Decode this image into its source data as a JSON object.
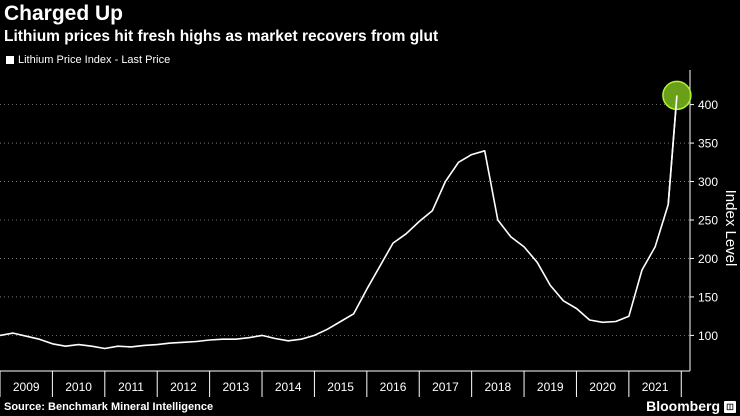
{
  "header": {
    "title": "Charged Up",
    "subtitle": "Lithium prices hit fresh highs as market recovers from glut"
  },
  "footer": {
    "source": "Source: Benchmark Mineral Intelligence",
    "brand": "Bloomberg",
    "brand_badge_icon": "bloomberg-badge-icon"
  },
  "colors": {
    "background": "#000000",
    "line": "#ffffff",
    "highlight_fill": "#7dbb1c",
    "highlight_stroke": "#b6f03a",
    "axis": "#ffffff",
    "grid": "#8a8a8a"
  },
  "chart_data": {
    "type": "line",
    "title": "Charged Up",
    "subtitle": "Lithium prices hit fresh highs as market recovers from glut",
    "ylabel": "Index Level",
    "xlabel": "",
    "legend": [
      "Lithium Price Index - Last Price"
    ],
    "legend_position": "top-left",
    "y_axis_side": "right",
    "grid": "dotted-horizontal",
    "ylim": [
      55,
      445
    ],
    "xlim": [
      "2009-01",
      "2022-03"
    ],
    "yticks": [
      100,
      150,
      200,
      250,
      300,
      350,
      400
    ],
    "xticks": [
      "2009",
      "2010",
      "2011",
      "2012",
      "2013",
      "2014",
      "2015",
      "2016",
      "2017",
      "2018",
      "2019",
      "2020",
      "2021"
    ],
    "highlight": {
      "x": "2021-12",
      "y": 412
    },
    "series": [
      {
        "name": "Lithium Price Index - Last Price",
        "x": [
          "2009-01",
          "2009-04",
          "2009-07",
          "2009-10",
          "2010-01",
          "2010-04",
          "2010-07",
          "2010-10",
          "2011-01",
          "2011-04",
          "2011-07",
          "2011-10",
          "2012-01",
          "2012-04",
          "2012-07",
          "2012-10",
          "2013-01",
          "2013-04",
          "2013-07",
          "2013-10",
          "2014-01",
          "2014-04",
          "2014-07",
          "2014-10",
          "2015-01",
          "2015-04",
          "2015-07",
          "2015-10",
          "2016-01",
          "2016-04",
          "2016-07",
          "2016-10",
          "2017-01",
          "2017-04",
          "2017-07",
          "2017-10",
          "2018-01",
          "2018-04",
          "2018-07",
          "2018-10",
          "2019-01",
          "2019-04",
          "2019-07",
          "2019-10",
          "2020-01",
          "2020-04",
          "2020-07",
          "2020-10",
          "2021-01",
          "2021-04",
          "2021-07",
          "2021-10",
          "2021-12"
        ],
        "y": [
          100,
          103,
          99,
          95,
          89,
          86,
          88,
          86,
          83,
          86,
          85,
          87,
          88,
          90,
          91,
          92,
          94,
          95,
          95,
          97,
          100,
          96,
          93,
          95,
          100,
          108,
          118,
          128,
          160,
          190,
          220,
          232,
          248,
          262,
          300,
          325,
          335,
          340,
          250,
          228,
          215,
          195,
          165,
          145,
          135,
          120,
          117,
          118,
          125,
          185,
          215,
          270,
          412
        ]
      }
    ]
  }
}
